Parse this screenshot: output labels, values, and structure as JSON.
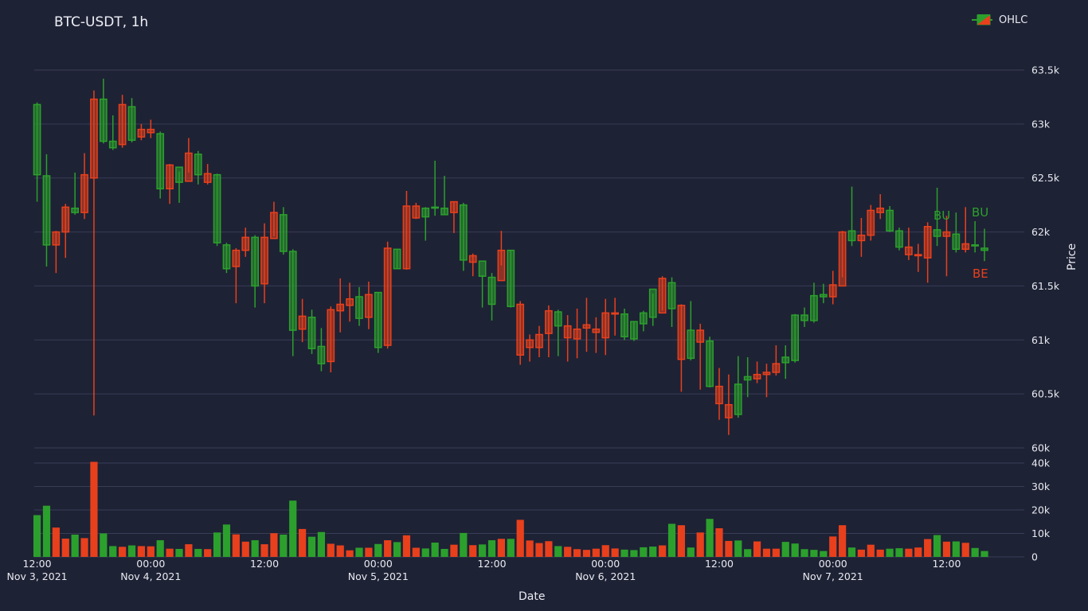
{
  "chart_data": {
    "type": "candlestick",
    "title": "BTC-USDT, 1h",
    "xlabel": "Date",
    "ylabel": "Price",
    "legend": {
      "label": "OHLC",
      "placement": "top-right"
    },
    "colors": {
      "up": "#2ca02c",
      "down": "#e8401c",
      "grid": "#383d56",
      "text": "#e8eaf0",
      "background": "#1e2235"
    },
    "price_axis": {
      "ylim": [
        60000,
        63750
      ],
      "ticks": [
        {
          "v": 60000,
          "label": "60k"
        },
        {
          "v": 60500,
          "label": "60.5k"
        },
        {
          "v": 61000,
          "label": "61k"
        },
        {
          "v": 61500,
          "label": "61.5k"
        },
        {
          "v": 62000,
          "label": "62k"
        },
        {
          "v": 62500,
          "label": "62.5k"
        },
        {
          "v": 63000,
          "label": "63k"
        },
        {
          "v": 63500,
          "label": "63.5k"
        }
      ]
    },
    "volume_axis": {
      "ylim": [
        0,
        40000
      ],
      "ticks": [
        {
          "v": 0,
          "label": "0"
        },
        {
          "v": 10000,
          "label": "10k"
        },
        {
          "v": 20000,
          "label": "20k"
        },
        {
          "v": 30000,
          "label": "30k"
        },
        {
          "v": 40000,
          "label": "40k"
        }
      ]
    },
    "x_ticks": [
      {
        "t": 0,
        "line1": "12:00",
        "line2": "Nov 3, 2021"
      },
      {
        "t": 12,
        "line1": "00:00",
        "line2": "Nov 4, 2021"
      },
      {
        "t": 24,
        "line1": "12:00",
        "line2": ""
      },
      {
        "t": 36,
        "line1": "00:00",
        "line2": "Nov 5, 2021"
      },
      {
        "t": 48,
        "line1": "12:00",
        "line2": ""
      },
      {
        "t": 60,
        "line1": "00:00",
        "line2": "Nov 6, 2021"
      },
      {
        "t": 72,
        "line1": "12:00",
        "line2": ""
      },
      {
        "t": 84,
        "line1": "00:00",
        "line2": "Nov 7, 2021"
      },
      {
        "t": 96,
        "line1": "12:00",
        "line2": ""
      }
    ],
    "x_domain_hours": [
      -0.3,
      104.2
    ],
    "ohlc_hours_from_nov3_12h": [
      [
        62530,
        63200,
        62280,
        63180,
        17800
      ],
      [
        61880,
        62720,
        61680,
        62520,
        21800
      ],
      [
        62000,
        62010,
        61620,
        61880,
        12500
      ],
      [
        62230,
        62260,
        61760,
        62000,
        7800
      ],
      [
        62180,
        62550,
        62160,
        62220,
        9500
      ],
      [
        62530,
        62730,
        62120,
        62180,
        8000
      ],
      [
        63230,
        63310,
        60300,
        62500,
        40500
      ],
      [
        62840,
        63420,
        62820,
        63230,
        10000
      ],
      [
        62780,
        63080,
        62760,
        62840,
        4600
      ],
      [
        63180,
        63270,
        62780,
        62810,
        4300
      ],
      [
        62850,
        63240,
        62830,
        63160,
        4900
      ],
      [
        62950,
        63000,
        62850,
        62880,
        4600
      ],
      [
        62950,
        63040,
        62870,
        62920,
        4500
      ],
      [
        62400,
        62930,
        62310,
        62910,
        7100
      ],
      [
        62620,
        62630,
        62260,
        62400,
        3500
      ],
      [
        62460,
        62560,
        62270,
        62600,
        3400
      ],
      [
        62730,
        62870,
        62550,
        62470,
        5400
      ],
      [
        62530,
        62750,
        62440,
        62720,
        3400
      ],
      [
        62540,
        62630,
        62440,
        62460,
        3300
      ],
      [
        61900,
        62540,
        61870,
        62530,
        10400
      ],
      [
        61660,
        61900,
        61620,
        61880,
        13800
      ],
      [
        61830,
        61850,
        61340,
        61680,
        9600
      ],
      [
        61950,
        62040,
        61770,
        61830,
        6500
      ],
      [
        61500,
        61970,
        61300,
        61950,
        7100
      ],
      [
        61950,
        62080,
        61340,
        61520,
        5400
      ],
      [
        62180,
        62280,
        61960,
        61940,
        10100
      ],
      [
        61820,
        62230,
        61790,
        62160,
        9500
      ],
      [
        61090,
        61840,
        60850,
        61820,
        24000
      ],
      [
        61220,
        61380,
        60980,
        61100,
        11900
      ],
      [
        60920,
        61280,
        60870,
        61210,
        8600
      ],
      [
        60780,
        61110,
        60710,
        60940,
        10600
      ],
      [
        61280,
        61310,
        60700,
        60800,
        5600
      ],
      [
        61330,
        61570,
        61070,
        61270,
        4900
      ],
      [
        61380,
        61530,
        61170,
        61320,
        2800
      ],
      [
        61200,
        61490,
        61130,
        61400,
        3900
      ],
      [
        61420,
        61540,
        61100,
        61210,
        3900
      ],
      [
        60930,
        61440,
        60880,
        61440,
        5500
      ],
      [
        61850,
        61910,
        60920,
        60950,
        7100
      ],
      [
        61660,
        61840,
        61660,
        61840,
        6300
      ],
      [
        62240,
        62380,
        61650,
        61660,
        9200
      ],
      [
        62240,
        62270,
        62120,
        62130,
        3900
      ],
      [
        62140,
        62230,
        61920,
        62220,
        3600
      ],
      [
        62230,
        62660,
        62150,
        62230,
        6100
      ],
      [
        62160,
        62520,
        62160,
        62220,
        3400
      ],
      [
        62280,
        62280,
        61990,
        62180,
        5200
      ],
      [
        61740,
        62270,
        61640,
        62250,
        10200
      ],
      [
        61780,
        61800,
        61590,
        61720,
        5000
      ],
      [
        61590,
        61600,
        61300,
        61730,
        5300
      ],
      [
        61330,
        61620,
        61180,
        61580,
        7100
      ],
      [
        61830,
        62010,
        61690,
        61550,
        7700
      ],
      [
        61310,
        61830,
        61300,
        61830,
        7700
      ],
      [
        61330,
        61360,
        60770,
        60860,
        15800
      ],
      [
        61000,
        61050,
        60800,
        60930,
        7000
      ],
      [
        61050,
        61130,
        60840,
        60930,
        5900
      ],
      [
        61270,
        61320,
        60840,
        61060,
        6700
      ],
      [
        61130,
        61280,
        60850,
        61260,
        4600
      ],
      [
        61130,
        61230,
        60800,
        61020,
        4300
      ],
      [
        61100,
        61290,
        60830,
        61010,
        3300
      ],
      [
        61140,
        61390,
        60890,
        61110,
        3000
      ],
      [
        61100,
        61210,
        60880,
        61070,
        3500
      ],
      [
        61250,
        61380,
        60860,
        61020,
        5000
      ],
      [
        61250,
        61390,
        61040,
        61240,
        3600
      ],
      [
        61030,
        61290,
        61000,
        61240,
        3100
      ],
      [
        61010,
        61170,
        60990,
        61170,
        2900
      ],
      [
        61150,
        61270,
        61080,
        61250,
        4100
      ],
      [
        61210,
        61430,
        61130,
        61470,
        4400
      ],
      [
        61570,
        61590,
        61270,
        61250,
        4900
      ],
      [
        61290,
        61580,
        61120,
        61530,
        14100
      ],
      [
        61320,
        61330,
        60520,
        60820,
        13500
      ],
      [
        60830,
        61360,
        60810,
        61090,
        4000
      ],
      [
        61090,
        61150,
        60540,
        60980,
        10400
      ],
      [
        60570,
        61030,
        60560,
        60990,
        16200
      ],
      [
        60570,
        60740,
        60260,
        60410,
        12200
      ],
      [
        60400,
        60680,
        60120,
        60280,
        6800
      ],
      [
        60310,
        60850,
        60280,
        60590,
        7000
      ],
      [
        60630,
        60840,
        60470,
        60660,
        3300
      ],
      [
        60680,
        60800,
        60600,
        60640,
        6600
      ],
      [
        60700,
        60780,
        60470,
        60680,
        3500
      ],
      [
        60780,
        60950,
        60670,
        60700,
        3500
      ],
      [
        60790,
        60950,
        60640,
        60840,
        6400
      ],
      [
        60810,
        61240,
        60790,
        61230,
        5700
      ],
      [
        61180,
        61300,
        61120,
        61230,
        3300
      ],
      [
        61180,
        61530,
        61160,
        61410,
        3000
      ],
      [
        61400,
        61520,
        61340,
        61420,
        2500
      ],
      [
        61510,
        61640,
        61330,
        61400,
        8700
      ],
      [
        62000,
        62010,
        61580,
        61500,
        13500
      ],
      [
        61920,
        62420,
        61870,
        62010,
        4000
      ],
      [
        61970,
        62130,
        61770,
        61920,
        3100
      ],
      [
        62200,
        62250,
        61920,
        61970,
        5200
      ],
      [
        62220,
        62350,
        62120,
        62180,
        3100
      ],
      [
        62010,
        62240,
        62000,
        62200,
        3500
      ],
      [
        61860,
        62040,
        61830,
        62010,
        3700
      ],
      [
        61860,
        62040,
        61740,
        61790,
        3500
      ],
      [
        61790,
        61890,
        61630,
        61780,
        4000
      ],
      [
        62050,
        62090,
        61530,
        61760,
        7600
      ],
      [
        61960,
        62410,
        61870,
        62020,
        9300
      ],
      [
        62000,
        62150,
        61590,
        61960,
        6500
      ],
      [
        61840,
        62180,
        61810,
        61980,
        6600
      ],
      [
        61890,
        62230,
        61810,
        61840,
        6000
      ],
      [
        61880,
        62100,
        61810,
        61880,
        3800
      ],
      [
        61830,
        62030,
        61730,
        61850,
        2500
      ]
    ],
    "annotations": [
      {
        "text": "BU",
        "color": "#2ca02c"
      },
      {
        "text": "BU",
        "color": "#2ca02c"
      },
      {
        "text": "BE",
        "color": "#e8401c"
      }
    ]
  }
}
